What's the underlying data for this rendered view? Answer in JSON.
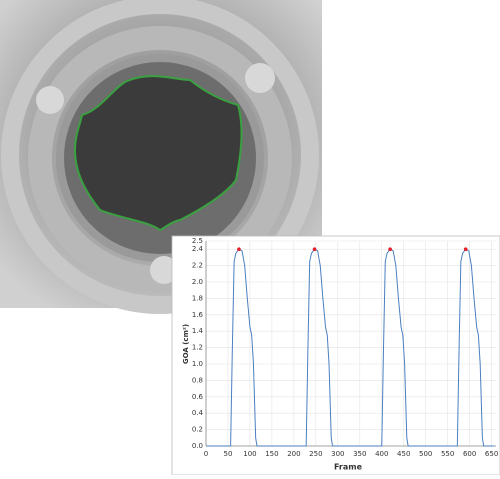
{
  "chart_data": {
    "type": "line",
    "x_label": "Frame",
    "y_label": "GOA (cm²)",
    "xlim": [
      0,
      660
    ],
    "ylim": [
      0,
      2.5
    ],
    "xticks": [
      0,
      50,
      100,
      150,
      200,
      250,
      300,
      350,
      400,
      450,
      500,
      550,
      600,
      650
    ],
    "yticks": [
      {
        "value": 0,
        "label": "0.0"
      },
      0.2,
      0.4,
      0.6,
      0.8,
      {
        "value": 1,
        "label": "1.0"
      },
      1.2,
      1.4,
      1.6,
      1.8,
      {
        "value": 2,
        "label": "2.0"
      },
      2.2,
      2.4,
      2.5
    ],
    "grid": true,
    "series": [
      {
        "color": "#4a7fc1",
        "style": "line",
        "x": [
          0,
          56,
          60,
          64,
          68,
          75,
          82,
          88,
          94,
          100,
          104,
          108,
          113,
          116,
          228,
          232,
          236,
          240,
          247,
          254,
          260,
          266,
          272,
          276,
          280,
          285,
          288,
          400,
          404,
          408,
          412,
          419,
          426,
          432,
          438,
          444,
          448,
          452,
          457,
          460,
          572,
          576,
          580,
          584,
          591,
          598,
          604,
          610,
          616,
          620,
          624,
          629,
          632,
          655
        ],
        "values": [
          0,
          0,
          1.2,
          2.25,
          2.35,
          2.4,
          2.38,
          2.2,
          1.8,
          1.45,
          1.35,
          1.0,
          0.1,
          0,
          0,
          1.2,
          2.25,
          2.35,
          2.4,
          2.38,
          2.2,
          1.8,
          1.45,
          1.35,
          1.0,
          0.1,
          0,
          0,
          1.2,
          2.25,
          2.35,
          2.4,
          2.38,
          2.2,
          1.8,
          1.45,
          1.35,
          1.0,
          0.1,
          0,
          0,
          1.2,
          2.25,
          2.35,
          2.4,
          2.38,
          2.2,
          1.8,
          1.45,
          1.35,
          1.0,
          0.1,
          0,
          0
        ]
      },
      {
        "color": "#e0202a",
        "style": "points",
        "x": [
          75,
          247,
          419,
          591
        ],
        "values": [
          2.4,
          2.4,
          2.4,
          2.4
        ]
      }
    ]
  }
}
